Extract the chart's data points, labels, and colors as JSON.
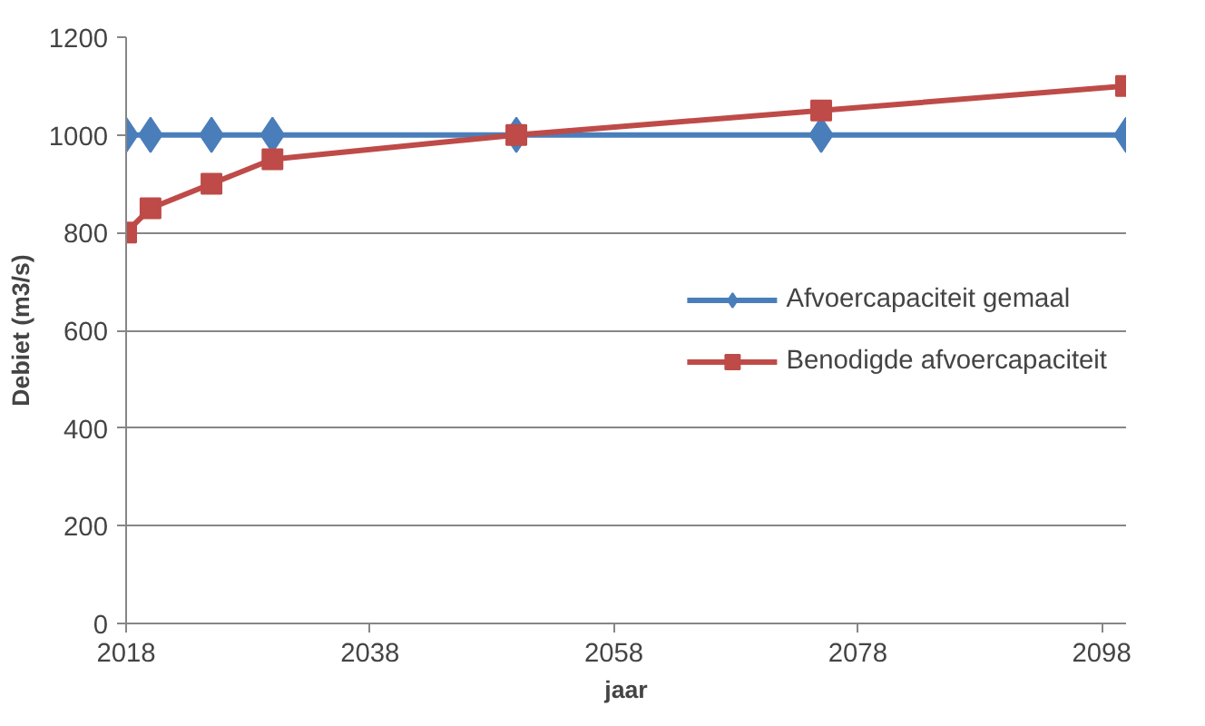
{
  "chart_data": {
    "type": "line",
    "xlabel": "jaar",
    "ylabel": "Debiet (m3/s)",
    "x": [
      2018,
      2020,
      2025,
      2030,
      2050,
      2075,
      2100
    ],
    "series": [
      {
        "name": "Afvoercapaciteit gemaal",
        "color": "#4a7ebb",
        "marker": "diamond",
        "values": [
          1000,
          1000,
          1000,
          1000,
          1000,
          1000,
          1000
        ]
      },
      {
        "name": "Benodigde afvoercapaciteit",
        "color": "#be4b48",
        "marker": "square",
        "values": [
          800,
          850,
          900,
          950,
          1000,
          1050,
          1100
        ]
      }
    ],
    "xlim": [
      2018,
      2100
    ],
    "xticks": [
      2018,
      2038,
      2058,
      2078,
      2098
    ],
    "ylim": [
      0,
      1200
    ],
    "yticks": [
      0,
      200,
      400,
      600,
      800,
      1000,
      1200
    ],
    "grid": "y",
    "legend": "right",
    "line_style": "solid"
  }
}
